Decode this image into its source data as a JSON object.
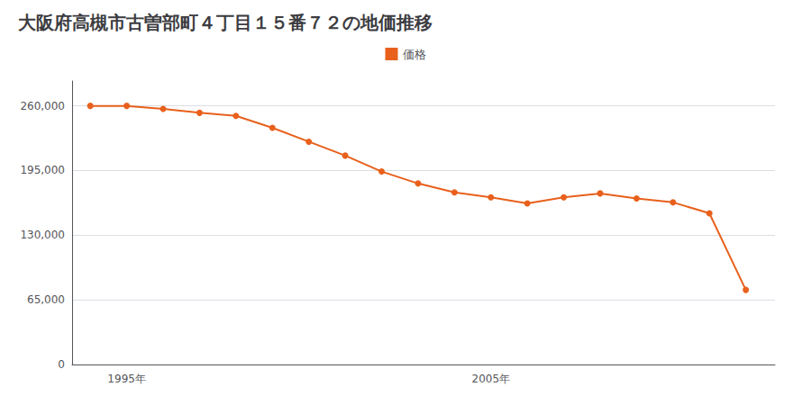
{
  "chart_data": {
    "type": "line",
    "title": "大阪府高槻市古曽部町４丁目１５番７２の地価推移",
    "x": [
      1994,
      1995,
      1996,
      1997,
      1998,
      1999,
      2000,
      2001,
      2002,
      2003,
      2004,
      2005,
      2006,
      2007,
      2008,
      2009,
      2010,
      2011,
      2012
    ],
    "series": [
      {
        "name": "価格",
        "color": "#e8601c",
        "values": [
          260000,
          260000,
          257000,
          253000,
          250000,
          238000,
          224000,
          210000,
          194000,
          182000,
          173000,
          168000,
          162000,
          168000,
          172000,
          167000,
          163000,
          152000,
          75000
        ]
      }
    ],
    "marker": "circle",
    "xlim": [
      1993.5,
      2012.8
    ],
    "xticks": [
      {
        "value": 1995,
        "label": "1995年"
      },
      {
        "value": 2005,
        "label": "2005年"
      }
    ],
    "ylim": [
      0,
      285000
    ],
    "yticks": [
      0,
      {
        "value": 65000,
        "label": "65,000"
      },
      {
        "value": 130000,
        "label": "130,000"
      },
      {
        "value": 195000,
        "label": "195,000"
      },
      {
        "value": 260000,
        "label": "260,000"
      }
    ],
    "grid": true,
    "legend": "top"
  }
}
